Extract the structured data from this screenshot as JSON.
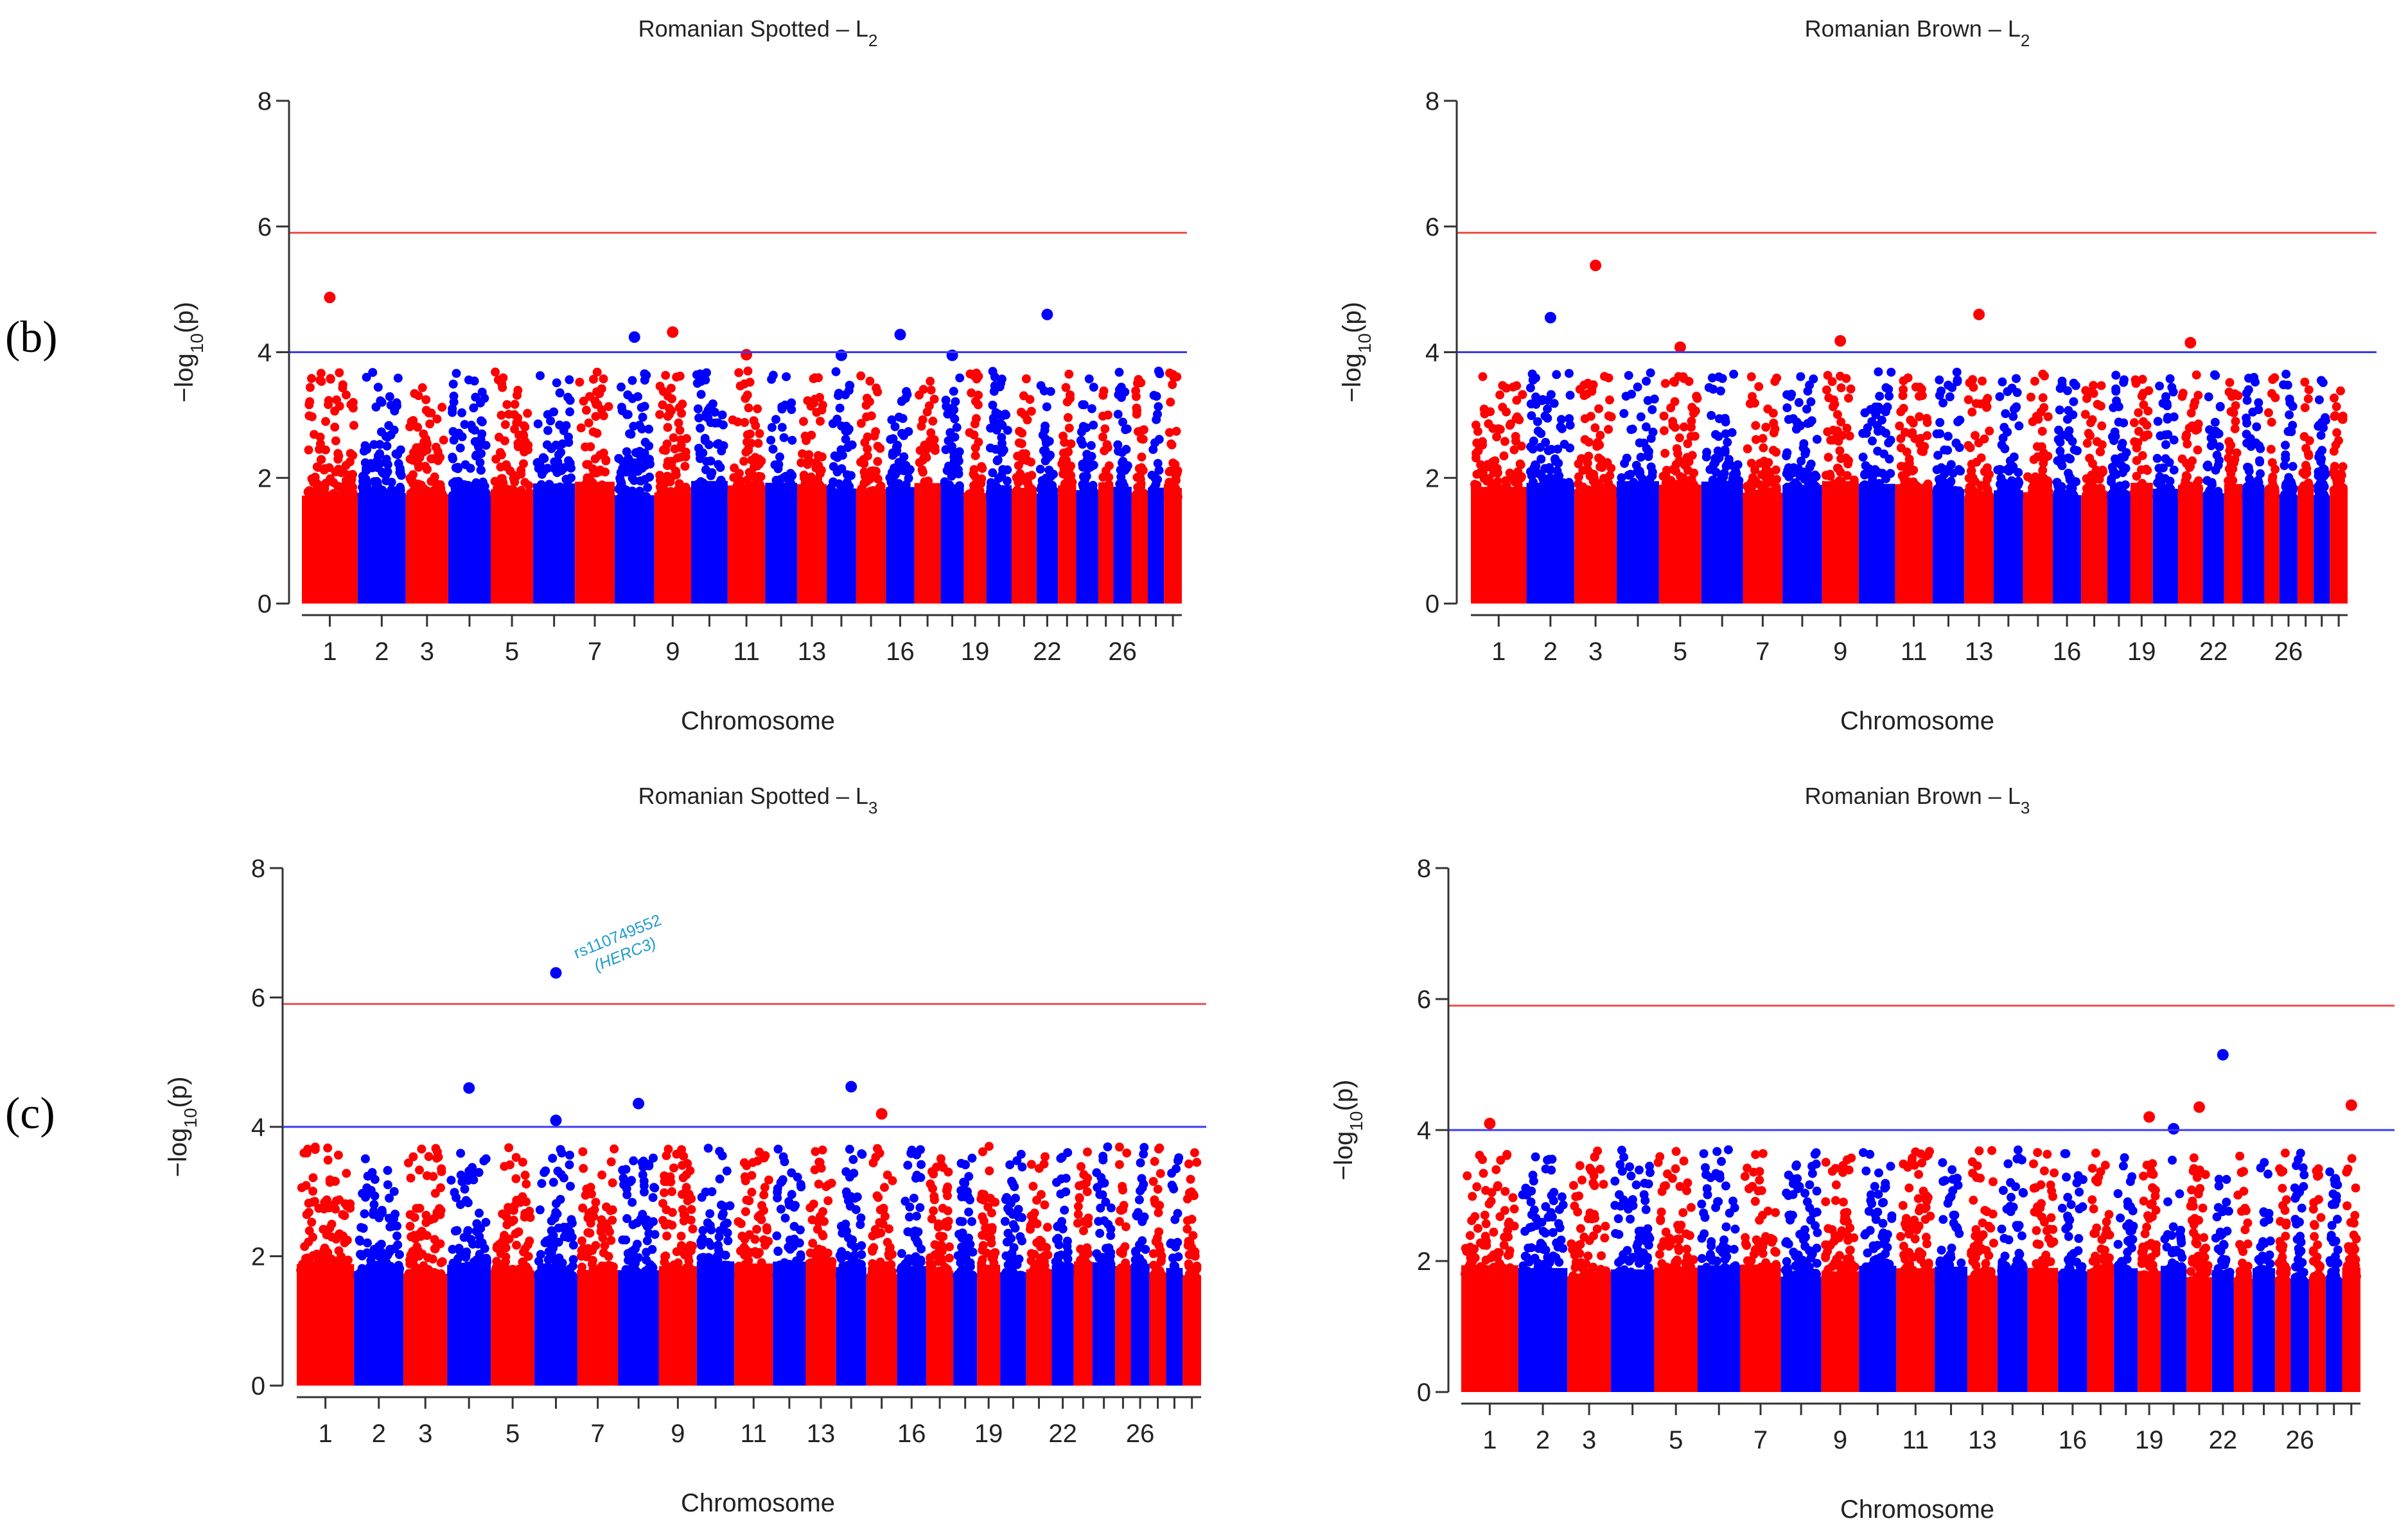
{
  "figure": {
    "panel_labels": [
      "(b)",
      "(c)"
    ],
    "threshold_line_colors": {
      "genome_wide": "#f05050",
      "suggestive": "#3a3af0"
    },
    "point_colors": [
      "#ff0000",
      "#0000ff"
    ]
  },
  "chart_data": [
    {
      "type": "scatter",
      "title": "Romanian Spotted – L2",
      "title_main": "Romanian Spotted – L",
      "title_sub": "2",
      "xlabel": "Chromosome",
      "ylabel": "−log10(p)",
      "ylabel_main": "−log",
      "ylabel_sub": "10",
      "ylabel_tail": "(p)",
      "ylim": [
        0,
        8
      ],
      "yticks": [
        0,
        2,
        4,
        6,
        8
      ],
      "xtick_labels": [
        "1",
        "2",
        "3",
        "5",
        "7",
        "9",
        "11",
        "13",
        "16",
        "19",
        "22",
        "26"
      ],
      "thresholds": {
        "genome_wide": 5.9,
        "suggestive": 4.0
      },
      "chromosomes": 29,
      "notable_points": [
        {
          "chr": 1,
          "neg_log10_p": 4.87
        },
        {
          "chr": 9,
          "neg_log10_p": 4.32
        },
        {
          "chr": 8,
          "neg_log10_p": 4.24
        },
        {
          "chr": 16,
          "neg_log10_p": 4.28
        },
        {
          "chr": 22,
          "neg_log10_p": 4.6
        },
        {
          "chr": 11,
          "neg_log10_p": 3.96
        },
        {
          "chr": 14,
          "neg_log10_p": 3.95
        },
        {
          "chr": 18,
          "neg_log10_p": 3.95
        }
      ],
      "annotation": null
    },
    {
      "type": "scatter",
      "title": "Romanian Brown – L2",
      "title_main": "Romanian Brown – L",
      "title_sub": "2",
      "xlabel": "Chromosome",
      "ylabel": "−log10(p)",
      "ylabel_main": "−log",
      "ylabel_sub": "10",
      "ylabel_tail": "(p)",
      "ylim": [
        0,
        8
      ],
      "yticks": [
        0,
        2,
        4,
        6,
        8
      ],
      "xtick_labels": [
        "1",
        "2",
        "3",
        "5",
        "7",
        "9",
        "11",
        "13",
        "16",
        "19",
        "22",
        "26"
      ],
      "thresholds": {
        "genome_wide": 5.9,
        "suggestive": 4.0
      },
      "chromosomes": 29,
      "notable_points": [
        {
          "chr": 3,
          "neg_log10_p": 5.38
        },
        {
          "chr": 2,
          "neg_log10_p": 4.55
        },
        {
          "chr": 13,
          "neg_log10_p": 4.6
        },
        {
          "chr": 9,
          "neg_log10_p": 4.18
        },
        {
          "chr": 21,
          "neg_log10_p": 4.15
        },
        {
          "chr": 5,
          "neg_log10_p": 4.08
        }
      ],
      "annotation": null
    },
    {
      "type": "scatter",
      "title": "Romanian Spotted – L3",
      "title_main": "Romanian Spotted – L",
      "title_sub": "3",
      "xlabel": "Chromosome",
      "ylabel": "−log10(p)",
      "ylabel_main": "−log",
      "ylabel_sub": "10",
      "ylabel_tail": "(p)",
      "ylim": [
        0,
        8
      ],
      "yticks": [
        0,
        2,
        4,
        6,
        8
      ],
      "xtick_labels": [
        "1",
        "2",
        "3",
        "5",
        "7",
        "9",
        "11",
        "13",
        "16",
        "19",
        "22",
        "26"
      ],
      "thresholds": {
        "genome_wide": 5.9,
        "suggestive": 4.0
      },
      "chromosomes": 29,
      "notable_points": [
        {
          "chr": 6,
          "neg_log10_p": 6.38
        },
        {
          "chr": 4,
          "neg_log10_p": 4.6
        },
        {
          "chr": 14,
          "neg_log10_p": 4.62
        },
        {
          "chr": 8,
          "neg_log10_p": 4.36
        },
        {
          "chr": 15,
          "neg_log10_p": 4.2
        },
        {
          "chr": 6,
          "neg_log10_p": 4.1
        }
      ],
      "annotation": {
        "chr": 6,
        "neg_log10_p": 6.38,
        "snp": "rs110749552",
        "gene": "(HERC3)"
      }
    },
    {
      "type": "scatter",
      "title": "Romanian Brown – L3",
      "title_main": "Romanian Brown – L",
      "title_sub": "3",
      "xlabel": "Chromosome",
      "ylabel": "−log10(p)",
      "ylabel_main": "−log",
      "ylabel_sub": "10",
      "ylabel_tail": "(p)",
      "ylim": [
        0,
        8
      ],
      "yticks": [
        0,
        2,
        4,
        6,
        8
      ],
      "xtick_labels": [
        "1",
        "2",
        "3",
        "5",
        "7",
        "9",
        "11",
        "13",
        "16",
        "19",
        "22",
        "26"
      ],
      "thresholds": {
        "genome_wide": 5.9,
        "suggestive": 4.0
      },
      "chromosomes": 29,
      "notable_points": [
        {
          "chr": 22,
          "neg_log10_p": 5.15
        },
        {
          "chr": 29,
          "neg_log10_p": 4.38
        },
        {
          "chr": 21,
          "neg_log10_p": 4.35
        },
        {
          "chr": 19,
          "neg_log10_p": 4.2
        },
        {
          "chr": 1,
          "neg_log10_p": 4.1
        },
        {
          "chr": 20,
          "neg_log10_p": 4.02
        }
      ],
      "annotation": null
    }
  ]
}
